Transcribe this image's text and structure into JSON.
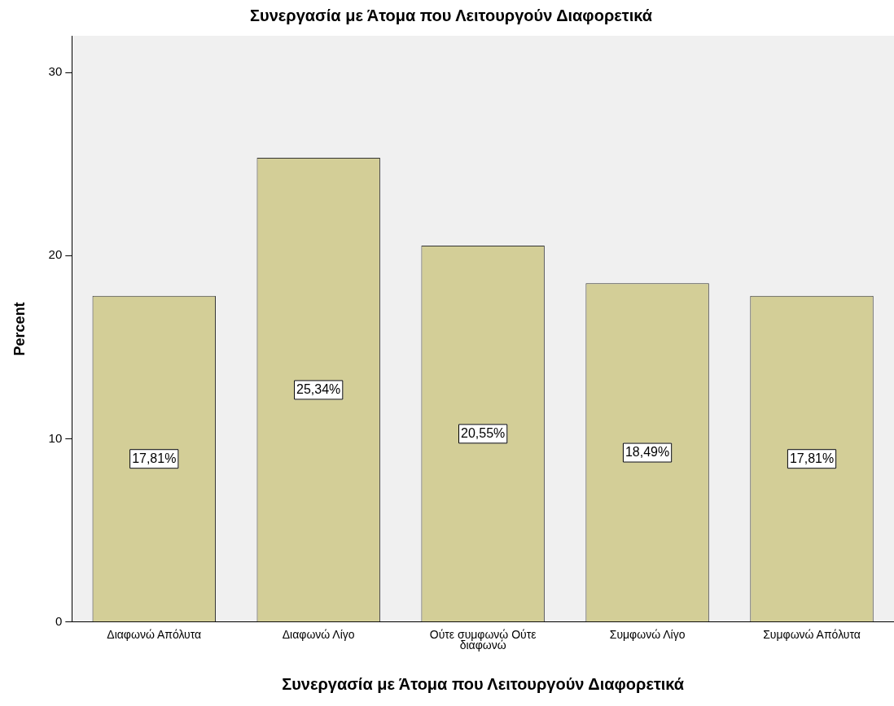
{
  "chart_data": {
    "type": "bar",
    "title": "Συνεργασία με Άτομα που Λειτουργούν Διαφορετικά",
    "xlabel": "Συνεργασία με Άτομα που Λειτουργούν Διαφορετικά",
    "ylabel": "Percent",
    "categories": [
      "Διαφωνώ Απόλυτα",
      "Διαφωνώ Λίγο",
      "Ούτε συμφωνώ Ούτε διαφωνώ",
      "Συμφωνώ Λίγο",
      "Συμφωνώ Απόλυτα"
    ],
    "values": [
      17.81,
      25.34,
      20.55,
      18.49,
      17.81
    ],
    "value_labels": [
      "17,81%",
      "25,34%",
      "20,55%",
      "18,49%",
      "17,81%"
    ],
    "color": "#d3ce97",
    "ylim": [
      0,
      32
    ],
    "yticks": [
      0,
      10,
      20,
      30
    ],
    "grid": false,
    "legend": false
  }
}
